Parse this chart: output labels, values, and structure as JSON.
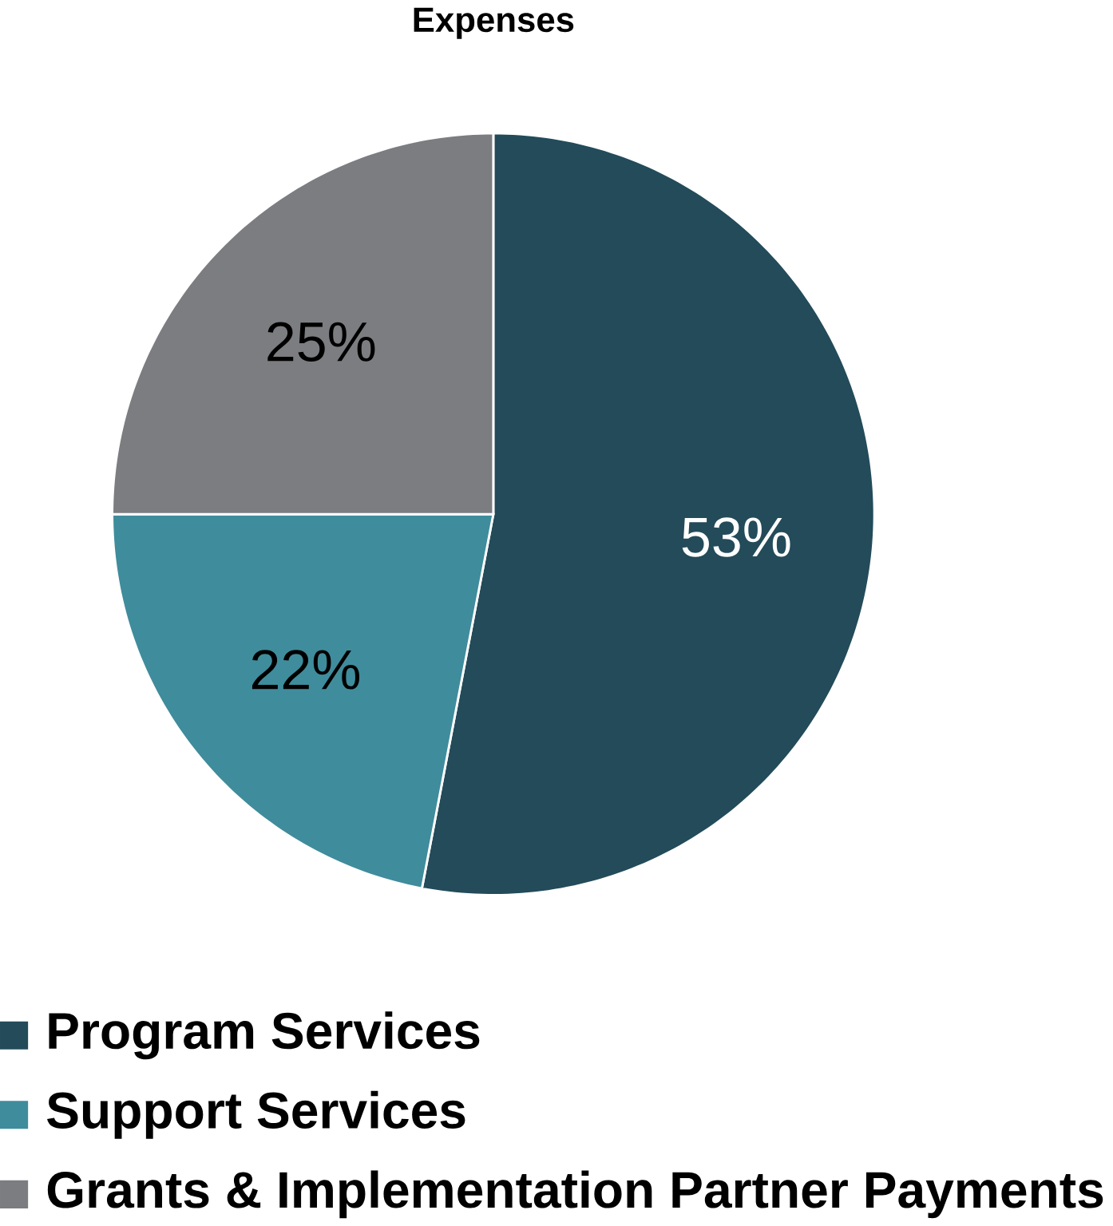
{
  "chart_data": {
    "type": "pie",
    "title": "Expenses",
    "categories": [
      "Program Services",
      "Support Services",
      "Grants & Implementation Partner Payments"
    ],
    "values": [
      53,
      22,
      25
    ],
    "colors": [
      "#234b5a",
      "#3f8c9c",
      "#7c7d81"
    ],
    "value_labels": [
      "53%",
      "22%",
      "25%"
    ],
    "legend": "bottom"
  }
}
